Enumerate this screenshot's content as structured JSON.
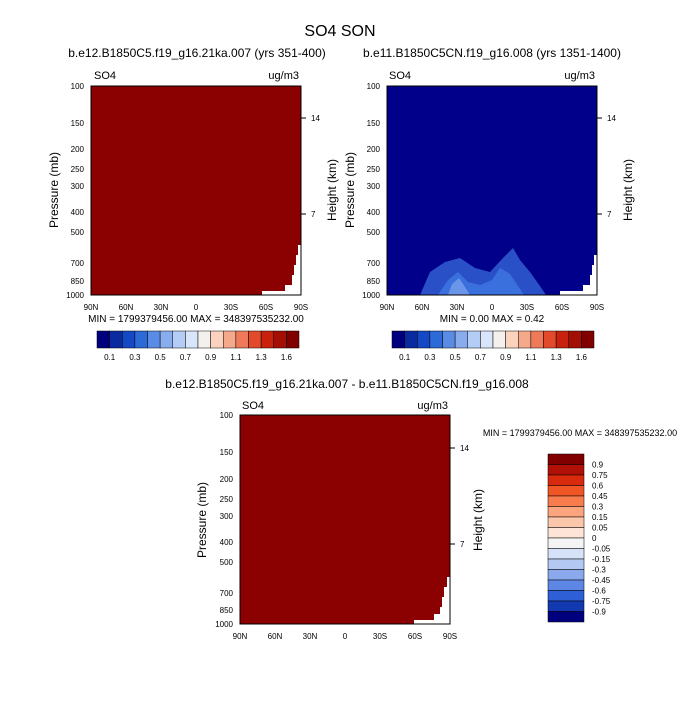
{
  "page": {
    "title": "SO4 SON"
  },
  "chart_data": [
    {
      "type": "heatmap",
      "panel_title": "b.e12.B1850C5.f19_g16.21ka.007 (yrs 351-400)",
      "variable": "SO4",
      "units": "ug/m3",
      "ylabel": "Pressure (mb)",
      "y2label": "Height (km)",
      "yticks": [
        "100",
        "150",
        "200",
        "250",
        "300",
        "400",
        "500",
        "700",
        "850",
        "1000"
      ],
      "y2ticks": [
        "14",
        "7"
      ],
      "xticks": [
        "90N",
        "60N",
        "30N",
        "0",
        "30S",
        "60S",
        "90S"
      ],
      "stats": "MIN = 1799379456.00  MAX = 348397535232.00",
      "fill": "saturated at top of scale (values far above 1.6)",
      "colorbar": {
        "orientation": "horizontal",
        "labels": [
          "0.1",
          "0.3",
          "0.5",
          "0.7",
          "0.9",
          "1.1",
          "1.3",
          "1.6"
        ],
        "colors": [
          "#00007f",
          "#0a2a9f",
          "#1448c4",
          "#2c6ad8",
          "#5b8ce5",
          "#88acee",
          "#b4cdf6",
          "#d9e5fa",
          "#f4f0ee",
          "#fad2be",
          "#f4a98a",
          "#ef7a5a",
          "#e24a2b",
          "#c8220e",
          "#a30f05",
          "#800000"
        ]
      }
    },
    {
      "type": "heatmap",
      "panel_title": "b.e11.B1850C5CN.f19_g16.008 (yrs 1351-1400)",
      "variable": "SO4",
      "units": "ug/m3",
      "ylabel": "Pressure (mb)",
      "y2label": "Height (km)",
      "yticks": [
        "100",
        "150",
        "200",
        "250",
        "300",
        "400",
        "500",
        "700",
        "850",
        "1000"
      ],
      "y2ticks": [
        "14",
        "7"
      ],
      "xticks": [
        "90N",
        "60N",
        "30N",
        "0",
        "30S",
        "60S",
        "90S"
      ],
      "stats": "MIN =  0.00  MAX =   0.42",
      "fill": "mostly below 0.1, contours up to about 0.4 near 30N and the equator below 700 mb",
      "colorbar": {
        "orientation": "horizontal",
        "labels": [
          "0.1",
          "0.3",
          "0.5",
          "0.7",
          "0.9",
          "1.1",
          "1.3",
          "1.6"
        ],
        "colors": [
          "#00007f",
          "#0a2a9f",
          "#1448c4",
          "#2c6ad8",
          "#5b8ce5",
          "#88acee",
          "#b4cdf6",
          "#d9e5fa",
          "#f4f0ee",
          "#fad2be",
          "#f4a98a",
          "#ef7a5a",
          "#e24a2b",
          "#c8220e",
          "#a30f05",
          "#800000"
        ]
      }
    },
    {
      "type": "heatmap",
      "panel_title": "b.e12.B1850C5.f19_g16.21ka.007 - b.e11.B1850C5CN.f19_g16.008",
      "variable": "SO4",
      "units": "ug/m3",
      "ylabel": "Pressure (mb)",
      "y2label": "Height (km)",
      "yticks": [
        "100",
        "150",
        "200",
        "250",
        "300",
        "400",
        "500",
        "700",
        "850",
        "1000"
      ],
      "y2ticks": [
        "14",
        "7"
      ],
      "xticks": [
        "90N",
        "60N",
        "30N",
        "0",
        "30S",
        "60S",
        "90S"
      ],
      "stats": "MIN = 1799379456.00  MAX = 348397535232.00",
      "fill": "saturated at top of scale (values far above 0.9)",
      "colorbar": {
        "orientation": "vertical",
        "labels": [
          "0.9",
          "0.75",
          "0.6",
          "0.45",
          "0.3",
          "0.15",
          "0.05",
          "0",
          "-0.05",
          "-0.15",
          "-0.3",
          "-0.45",
          "-0.6",
          "-0.75",
          "-0.9"
        ],
        "colors": [
          "#800000",
          "#b01005",
          "#d82a0c",
          "#f05526",
          "#f87c4e",
          "#fba47e",
          "#fcc6aa",
          "#fde4d6",
          "#f4f4f4",
          "#d6e2f8",
          "#b3c8f2",
          "#8aa8ec",
          "#5e86e4",
          "#2e5fd6",
          "#1239b0",
          "#00007f"
        ]
      }
    }
  ]
}
